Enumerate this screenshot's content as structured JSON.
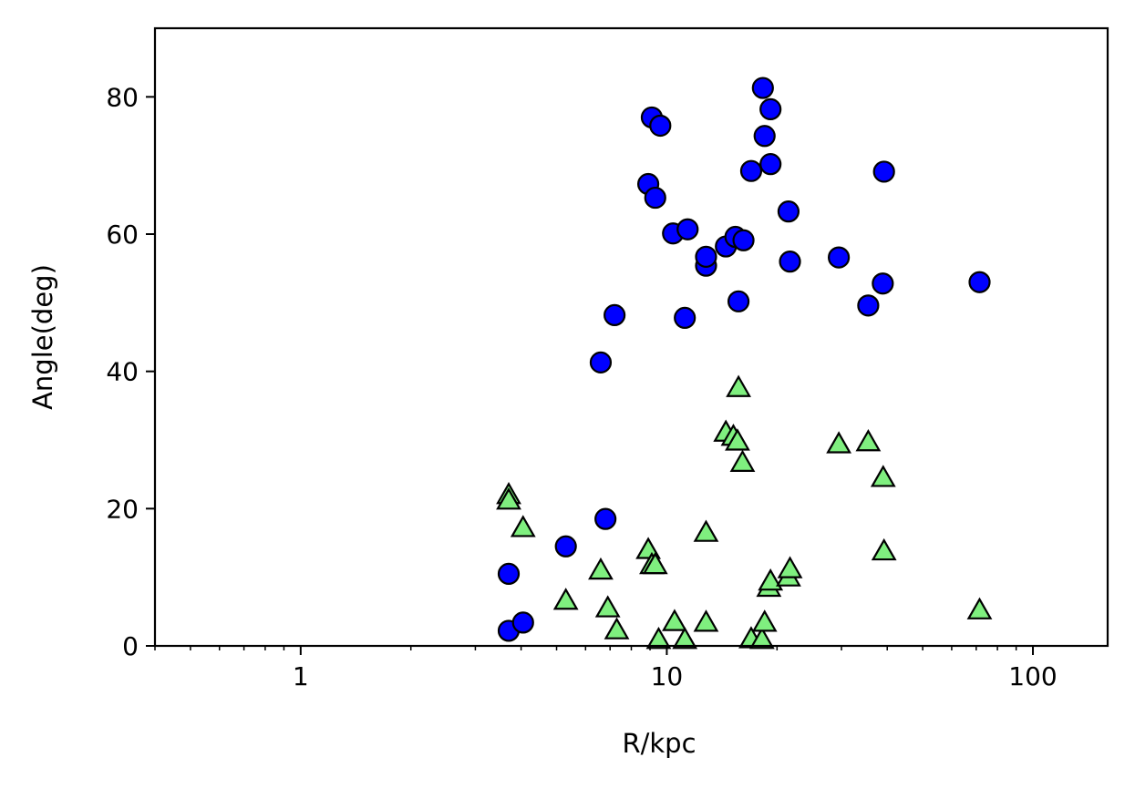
{
  "chart_data": {
    "type": "scatter",
    "title": "",
    "xlabel": "R/kpc",
    "ylabel": "Angle(deg)",
    "xscale": "log",
    "xlim": [
      0.4,
      160
    ],
    "ylim": [
      0,
      90
    ],
    "grid": false,
    "x_tick_labels": [
      "1",
      "10",
      "100"
    ],
    "y_tick_labels": [
      "0",
      "20",
      "40",
      "60",
      "80"
    ],
    "series": [
      {
        "marker": "circle",
        "color": "#0000ff",
        "points": [
          [
            3.7,
            10.5
          ],
          [
            3.7,
            2.2
          ],
          [
            4.05,
            3.4
          ],
          [
            5.3,
            14.5
          ],
          [
            6.6,
            41.3
          ],
          [
            6.8,
            18.5
          ],
          [
            7.2,
            48.2
          ],
          [
            8.9,
            67.3
          ],
          [
            9.1,
            77.0
          ],
          [
            9.3,
            65.3
          ],
          [
            9.6,
            75.8
          ],
          [
            10.4,
            60.1
          ],
          [
            11.2,
            47.8
          ],
          [
            11.4,
            60.7
          ],
          [
            12.8,
            55.4
          ],
          [
            12.8,
            56.7
          ],
          [
            14.5,
            58.2
          ],
          [
            15.4,
            59.6
          ],
          [
            15.7,
            50.2
          ],
          [
            16.2,
            59.1
          ],
          [
            17.0,
            69.2
          ],
          [
            18.3,
            81.3
          ],
          [
            18.5,
            74.3
          ],
          [
            19.2,
            78.2
          ],
          [
            19.2,
            70.2
          ],
          [
            21.5,
            63.3
          ],
          [
            21.7,
            56.0
          ],
          [
            29.5,
            56.6
          ],
          [
            35.5,
            49.6
          ],
          [
            38.9,
            52.8
          ],
          [
            39.2,
            69.1
          ],
          [
            71.5,
            53.0
          ]
        ]
      },
      {
        "marker": "triangle",
        "color": "#7fef7f",
        "points": [
          [
            3.7,
            22.0
          ],
          [
            3.7,
            21.2
          ],
          [
            4.05,
            17.2
          ],
          [
            5.3,
            6.6
          ],
          [
            6.6,
            11.0
          ],
          [
            6.9,
            5.5
          ],
          [
            7.3,
            2.3
          ],
          [
            8.9,
            14.0
          ],
          [
            9.1,
            11.8
          ],
          [
            9.3,
            11.8
          ],
          [
            9.5,
            0.9
          ],
          [
            10.5,
            3.5
          ],
          [
            11.2,
            0.9
          ],
          [
            12.8,
            16.5
          ],
          [
            12.8,
            3.4
          ],
          [
            14.5,
            31.1
          ],
          [
            15.2,
            30.5
          ],
          [
            15.6,
            29.8
          ],
          [
            15.7,
            37.6
          ],
          [
            16.1,
            26.7
          ],
          [
            17.0,
            1.0
          ],
          [
            18.2,
            0.9
          ],
          [
            18.5,
            3.4
          ],
          [
            19.0,
            8.5
          ],
          [
            19.2,
            9.4
          ],
          [
            21.5,
            10.0
          ],
          [
            21.7,
            11.2
          ],
          [
            29.5,
            29.4
          ],
          [
            35.5,
            29.7
          ],
          [
            39.0,
            24.5
          ],
          [
            39.2,
            13.8
          ],
          [
            71.5,
            5.2
          ]
        ]
      }
    ]
  }
}
